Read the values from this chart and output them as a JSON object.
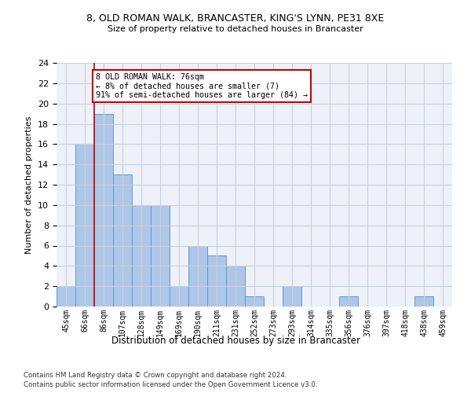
{
  "title1": "8, OLD ROMAN WALK, BRANCASTER, KING'S LYNN, PE31 8XE",
  "title2": "Size of property relative to detached houses in Brancaster",
  "xlabel": "Distribution of detached houses by size in Brancaster",
  "ylabel": "Number of detached properties",
  "categories": [
    "45sqm",
    "66sqm",
    "86sqm",
    "107sqm",
    "128sqm",
    "149sqm",
    "169sqm",
    "190sqm",
    "211sqm",
    "231sqm",
    "252sqm",
    "273sqm",
    "293sqm",
    "314sqm",
    "335sqm",
    "356sqm",
    "376sqm",
    "397sqm",
    "418sqm",
    "438sqm",
    "459sqm"
  ],
  "values": [
    2,
    16,
    19,
    13,
    10,
    10,
    2,
    6,
    5,
    4,
    1,
    0,
    2,
    0,
    0,
    1,
    0,
    0,
    0,
    1,
    0
  ],
  "bar_color": "#aec6e8",
  "bar_edge_color": "#5b9bd5",
  "ylim": [
    0,
    24
  ],
  "yticks": [
    0,
    2,
    4,
    6,
    8,
    10,
    12,
    14,
    16,
    18,
    20,
    22,
    24
  ],
  "property_line_x": 1.5,
  "annotation_text": "8 OLD ROMAN WALK: 76sqm\n← 8% of detached houses are smaller (7)\n91% of semi-detached houses are larger (84) →",
  "annotation_box_color": "#ffffff",
  "annotation_box_edge": "#cc0000",
  "footnote1": "Contains HM Land Registry data © Crown copyright and database right 2024.",
  "footnote2": "Contains public sector information licensed under the Open Government Licence v3.0.",
  "grid_color": "#c8d0dc",
  "bg_color": "#eef2f8"
}
